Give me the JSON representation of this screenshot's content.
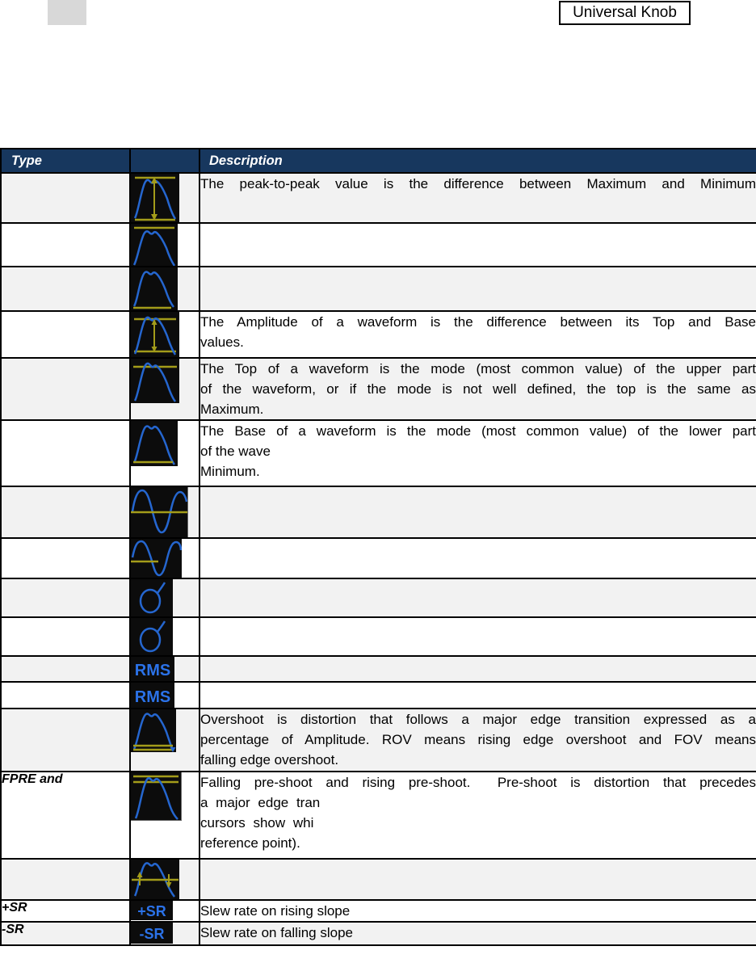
{
  "page": {
    "top_right_label": "Universal Knob"
  },
  "colors": {
    "header_bg": "#17375e",
    "header_text": "#ffffff",
    "row_alt_bg": "#f2f2f2",
    "icon_bg": "#0c0c0c",
    "waveform_blue": "#2566cf",
    "glyph_blue": "#2b72e8",
    "marker_yellow": "#a39c1a",
    "top_left_block": "#d8d8d8"
  },
  "table": {
    "header": {
      "type": "Type",
      "description": "Description"
    },
    "rows": [
      {
        "icon": "peak-to-peak-waveform",
        "lines": [
          {
            "t": "The peak-to-peak value is the difference between Maximum and Minimum",
            "j": true
          }
        ]
      },
      {
        "icon": "maximum-waveform"
      },
      {
        "icon": "minimum-waveform"
      },
      {
        "icon": "amplitude-waveform",
        "lines": [
          {
            "t": "The Amplitude of a waveform is the difference between its Top and Base",
            "j": true
          },
          {
            "t": "values."
          }
        ]
      },
      {
        "icon": "top-waveform",
        "lines": [
          {
            "t": "The Top of a waveform is the mode (most common value) of the upper part",
            "j": true
          },
          {
            "t": "of the waveform, or if the mode is not well defined, the top is the same as",
            "j": true
          },
          {
            "t": "Maximum."
          }
        ]
      },
      {
        "icon": "base-waveform",
        "lines": [
          {
            "t": "The Base of a waveform is the mode (most common value) of the lower part",
            "j": true
          },
          {
            "t": "of the wave"
          },
          {
            "t": "Minimum."
          }
        ]
      },
      {
        "icon": "mean-waveform"
      },
      {
        "icon": "cycle-mean-waveform"
      },
      {
        "icon": "stdev-sigma"
      },
      {
        "icon": "cycle-stdev-sigma"
      },
      {
        "icon": "rms",
        "glyph": "RMS"
      },
      {
        "icon": "cycle-rms",
        "glyph": "RMS"
      },
      {
        "icon": "overshoot-waveform",
        "lines": [
          {
            "t": "Overshoot is distortion that follows a major edge transition expressed as a",
            "j": true
          },
          {
            "t": "percentage of Amplitude. ROV means rising edge overshoot and FOV means",
            "j": true
          },
          {
            "t": "falling edge overshoot."
          }
        ]
      },
      {
        "type": "FPRE and",
        "icon": "preshoot-waveform",
        "lines": [
          {
            "t": "Falling pre-shoot and rising pre-shoot.  Pre-shoot is distortion that precedes",
            "j": true
          },
          {
            "t": "a major edge tran",
            "ws": true
          },
          {
            "t": "cursors show whi",
            "ws": true
          },
          {
            "t": "reference point)."
          }
        ]
      },
      {
        "icon": "level-crossing-waveform"
      },
      {
        "type": "+SR",
        "icon": "plus-slew-rate",
        "glyph": "+SR",
        "lines": [
          {
            "t": "Slew rate on rising slope"
          }
        ]
      },
      {
        "type": "-SR",
        "icon": "minus-slew-rate",
        "glyph": "-SR",
        "lines": [
          {
            "t": "Slew rate on falling slope"
          }
        ]
      }
    ]
  }
}
